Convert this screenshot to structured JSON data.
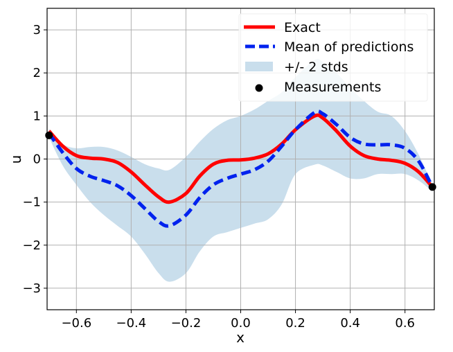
{
  "chart_data": {
    "type": "line",
    "title": "",
    "xlabel": "x",
    "ylabel": "u",
    "xlim": [
      -0.707,
      0.707
    ],
    "ylim": [
      -3.5,
      3.5
    ],
    "grid": true,
    "xticks": [
      -0.6,
      -0.4,
      -0.2,
      0.0,
      0.2,
      0.4,
      0.6
    ],
    "xtick_labels": [
      "−0.6",
      "−0.4",
      "−0.2",
      "0.0",
      "0.2",
      "0.4",
      "0.6"
    ],
    "yticks": [
      -3,
      -2,
      -1,
      0,
      1,
      2,
      3
    ],
    "ytick_labels": [
      "−3",
      "−2",
      "−1",
      "0",
      "1",
      "2",
      "3"
    ],
    "legend_position": "top-right",
    "legend": [
      "Exact",
      "Mean of predictions",
      "+/- 2 stds",
      "Measurements"
    ],
    "series": [
      {
        "name": "Exact",
        "color": "#ff0000",
        "style": "solid",
        "x": [
          -0.7,
          -0.65,
          -0.6,
          -0.55,
          -0.5,
          -0.45,
          -0.4,
          -0.35,
          -0.3,
          -0.26,
          -0.2,
          -0.15,
          -0.1,
          -0.05,
          0.0,
          0.05,
          0.1,
          0.15,
          0.2,
          0.27,
          0.3,
          0.35,
          0.4,
          0.45,
          0.5,
          0.55,
          0.6,
          0.65,
          0.7
        ],
        "y": [
          0.65,
          0.3,
          0.08,
          0.02,
          0.0,
          -0.08,
          -0.3,
          -0.6,
          -0.88,
          -1.0,
          -0.8,
          -0.4,
          -0.12,
          -0.03,
          -0.02,
          0.02,
          0.12,
          0.35,
          0.68,
          1.0,
          0.95,
          0.65,
          0.3,
          0.08,
          0.0,
          -0.03,
          -0.1,
          -0.3,
          -0.65
        ]
      },
      {
        "name": "Mean of predictions",
        "color": "#0022ee",
        "style": "dashed",
        "x": [
          -0.7,
          -0.65,
          -0.6,
          -0.55,
          -0.5,
          -0.45,
          -0.4,
          -0.35,
          -0.3,
          -0.26,
          -0.2,
          -0.15,
          -0.1,
          -0.05,
          0.0,
          0.05,
          0.1,
          0.15,
          0.2,
          0.27,
          0.3,
          0.35,
          0.4,
          0.45,
          0.5,
          0.55,
          0.6,
          0.65,
          0.7
        ],
        "y": [
          0.6,
          0.15,
          -0.22,
          -0.4,
          -0.5,
          -0.62,
          -0.85,
          -1.15,
          -1.45,
          -1.55,
          -1.3,
          -0.9,
          -0.6,
          -0.45,
          -0.35,
          -0.25,
          -0.05,
          0.3,
          0.68,
          1.08,
          1.05,
          0.8,
          0.5,
          0.35,
          0.33,
          0.33,
          0.25,
          -0.05,
          -0.65
        ]
      },
      {
        "name": "+/- 2 stds",
        "color": "#c9deec",
        "type": "band",
        "x": [
          -0.7,
          -0.65,
          -0.6,
          -0.55,
          -0.5,
          -0.45,
          -0.4,
          -0.35,
          -0.3,
          -0.26,
          -0.2,
          -0.15,
          -0.1,
          -0.05,
          0.0,
          0.05,
          0.1,
          0.15,
          0.2,
          0.27,
          0.3,
          0.35,
          0.4,
          0.45,
          0.5,
          0.55,
          0.6,
          0.65,
          0.7
        ],
        "upper": [
          0.7,
          0.35,
          0.25,
          0.28,
          0.28,
          0.2,
          0.05,
          -0.12,
          -0.22,
          -0.25,
          0.05,
          0.4,
          0.7,
          0.9,
          1.0,
          1.15,
          1.35,
          1.55,
          1.9,
          2.3,
          2.25,
          2.0,
          1.65,
          1.35,
          1.1,
          1.0,
          0.65,
          0.1,
          -0.6
        ],
        "lower": [
          0.5,
          -0.15,
          -0.6,
          -1.0,
          -1.3,
          -1.55,
          -1.8,
          -2.2,
          -2.65,
          -2.85,
          -2.65,
          -2.15,
          -1.8,
          -1.7,
          -1.6,
          -1.5,
          -1.4,
          -1.05,
          -0.35,
          -0.13,
          -0.15,
          -0.3,
          -0.45,
          -0.45,
          -0.35,
          -0.35,
          -0.35,
          -0.5,
          -0.75
        ]
      },
      {
        "name": "Measurements",
        "color": "#000000",
        "type": "scatter",
        "x": [
          -0.7,
          0.7
        ],
        "y": [
          0.55,
          -0.65
        ]
      }
    ]
  }
}
